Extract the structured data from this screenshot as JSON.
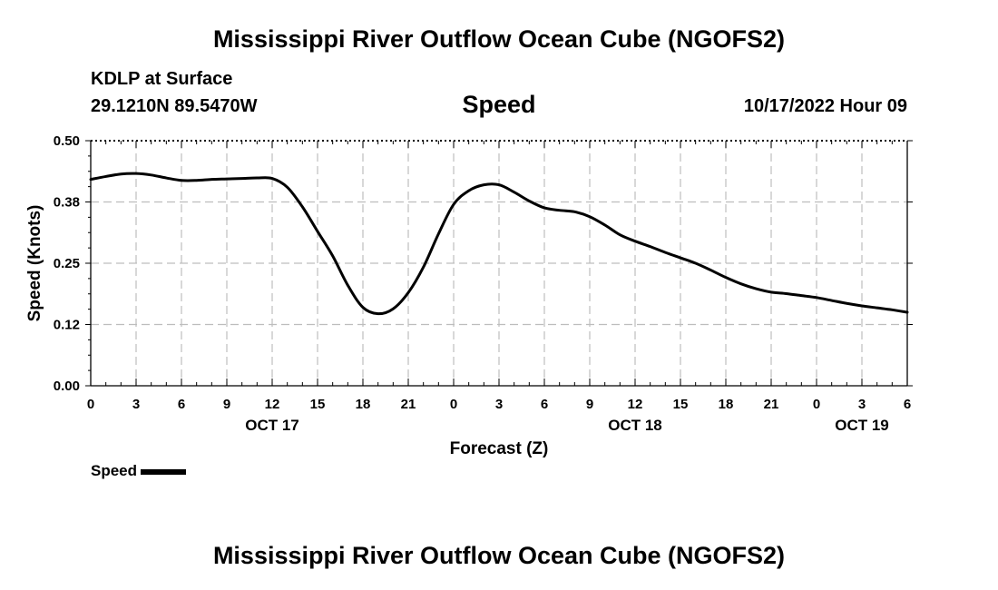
{
  "header": {
    "title": "Mississippi River Outflow Ocean Cube (NGOFS2)",
    "station": "KDLP at Surface",
    "coords": "29.1210N  89.5470W",
    "variable": "Speed",
    "datetime": "10/17/2022 Hour 09"
  },
  "footer": {
    "title": "Mississippi River Outflow Ocean Cube (NGOFS2)"
  },
  "chart_data": {
    "type": "line",
    "xlabel": "Forecast (Z)",
    "ylabel": "Speed (Knots)",
    "ylim": [
      0,
      0.5
    ],
    "xlim": [
      0,
      54
    ],
    "yticks": [
      "0.00",
      "0.12",
      "0.25",
      "0.38",
      "0.50"
    ],
    "xtick_labels": [
      "0",
      "3",
      "6",
      "9",
      "12",
      "15",
      "18",
      "21",
      "0",
      "3",
      "6",
      "9",
      "12",
      "15",
      "18",
      "21",
      "0",
      "3",
      "6"
    ],
    "date_labels": [
      {
        "label": "OCT 17",
        "at_hour": 12
      },
      {
        "label": "OCT 18",
        "at_hour": 36
      },
      {
        "label": "OCT 19",
        "at_hour": 51
      }
    ],
    "grid": true,
    "legend": "bottom-left",
    "series": [
      {
        "name": "Speed",
        "color": "#000000",
        "x": [
          0,
          1,
          2,
          3,
          4,
          5,
          6,
          7,
          8,
          9,
          10,
          11,
          12,
          13,
          14,
          15,
          16,
          17,
          18,
          19,
          20,
          21,
          22,
          23,
          24,
          25,
          26,
          27,
          28,
          29,
          30,
          31,
          32,
          33,
          34,
          35,
          36,
          37,
          38,
          39,
          40,
          41,
          42,
          43,
          44,
          45,
          46,
          47,
          48,
          49,
          50,
          51,
          52,
          53,
          54
        ],
        "values": [
          0.421,
          0.427,
          0.432,
          0.433,
          0.43,
          0.424,
          0.419,
          0.419,
          0.421,
          0.422,
          0.423,
          0.424,
          0.423,
          0.405,
          0.365,
          0.315,
          0.265,
          0.205,
          0.16,
          0.147,
          0.157,
          0.19,
          0.242,
          0.31,
          0.37,
          0.398,
          0.41,
          0.41,
          0.395,
          0.377,
          0.363,
          0.358,
          0.355,
          0.345,
          0.328,
          0.308,
          0.295,
          0.284,
          0.272,
          0.261,
          0.25,
          0.236,
          0.221,
          0.208,
          0.198,
          0.191,
          0.188,
          0.184,
          0.18,
          0.174,
          0.168,
          0.163,
          0.159,
          0.155,
          0.15
        ]
      }
    ]
  }
}
